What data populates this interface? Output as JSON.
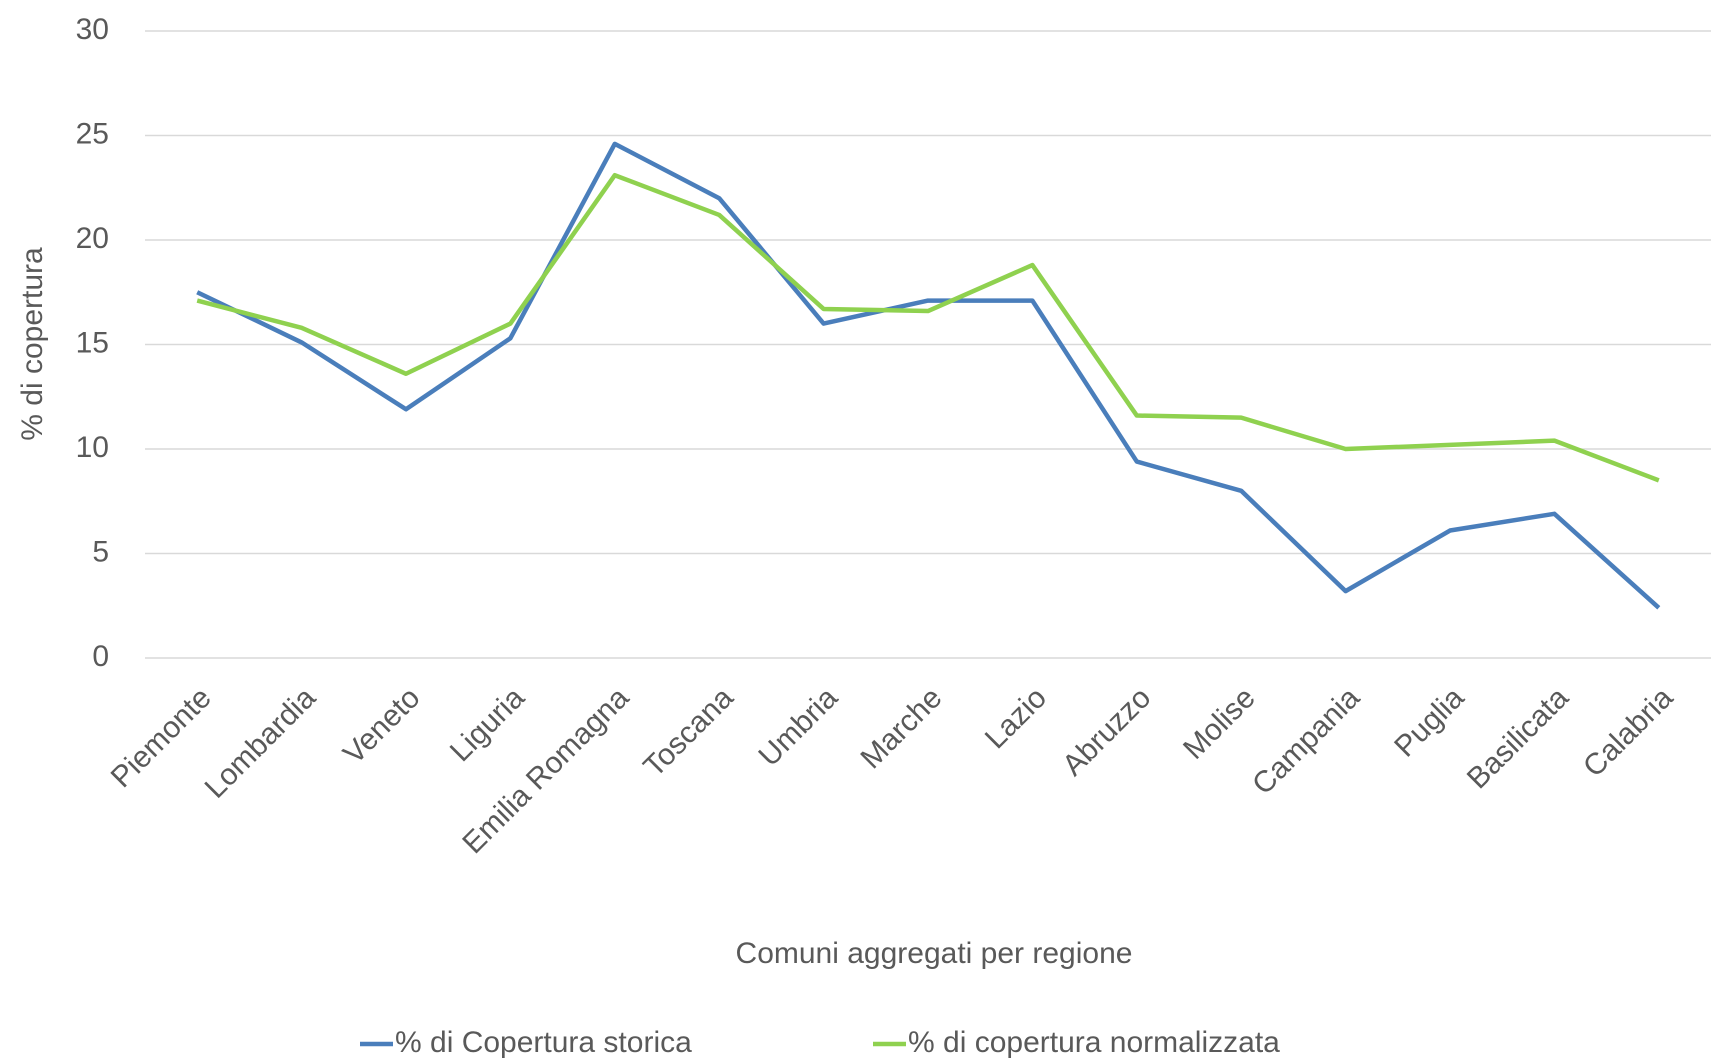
{
  "chart_data": {
    "type": "line",
    "y_label": "% di copertura",
    "x_label": "Comuni aggregati per regione",
    "categories": [
      "Piemonte",
      "Lombardia",
      "Veneto",
      "Liguria",
      "Emilia Romagna",
      "Toscana",
      "Umbria",
      "Marche",
      "Lazio",
      "Abruzzo",
      "Molise",
      "Campania",
      "Puglia",
      "Basilicata",
      "Calabria"
    ],
    "series": [
      {
        "name": "% di Copertura storica",
        "color": "#4a7ebb",
        "values": [
          17.5,
          15.1,
          11.9,
          15.3,
          24.6,
          22.0,
          16.0,
          17.1,
          17.1,
          9.4,
          8.0,
          3.2,
          6.1,
          6.9,
          2.4
        ]
      },
      {
        "name": "% di copertura normalizzata",
        "color": "#8fd14f",
        "values": [
          17.1,
          15.8,
          13.6,
          16.0,
          23.1,
          21.2,
          16.7,
          16.6,
          18.8,
          11.6,
          11.5,
          10.0,
          10.2,
          10.4,
          8.5
        ]
      }
    ],
    "ylim": [
      0,
      30
    ],
    "yticks": [
      0,
      5,
      10,
      15,
      20,
      25,
      30
    ],
    "grid": true,
    "legend": "bottom"
  }
}
